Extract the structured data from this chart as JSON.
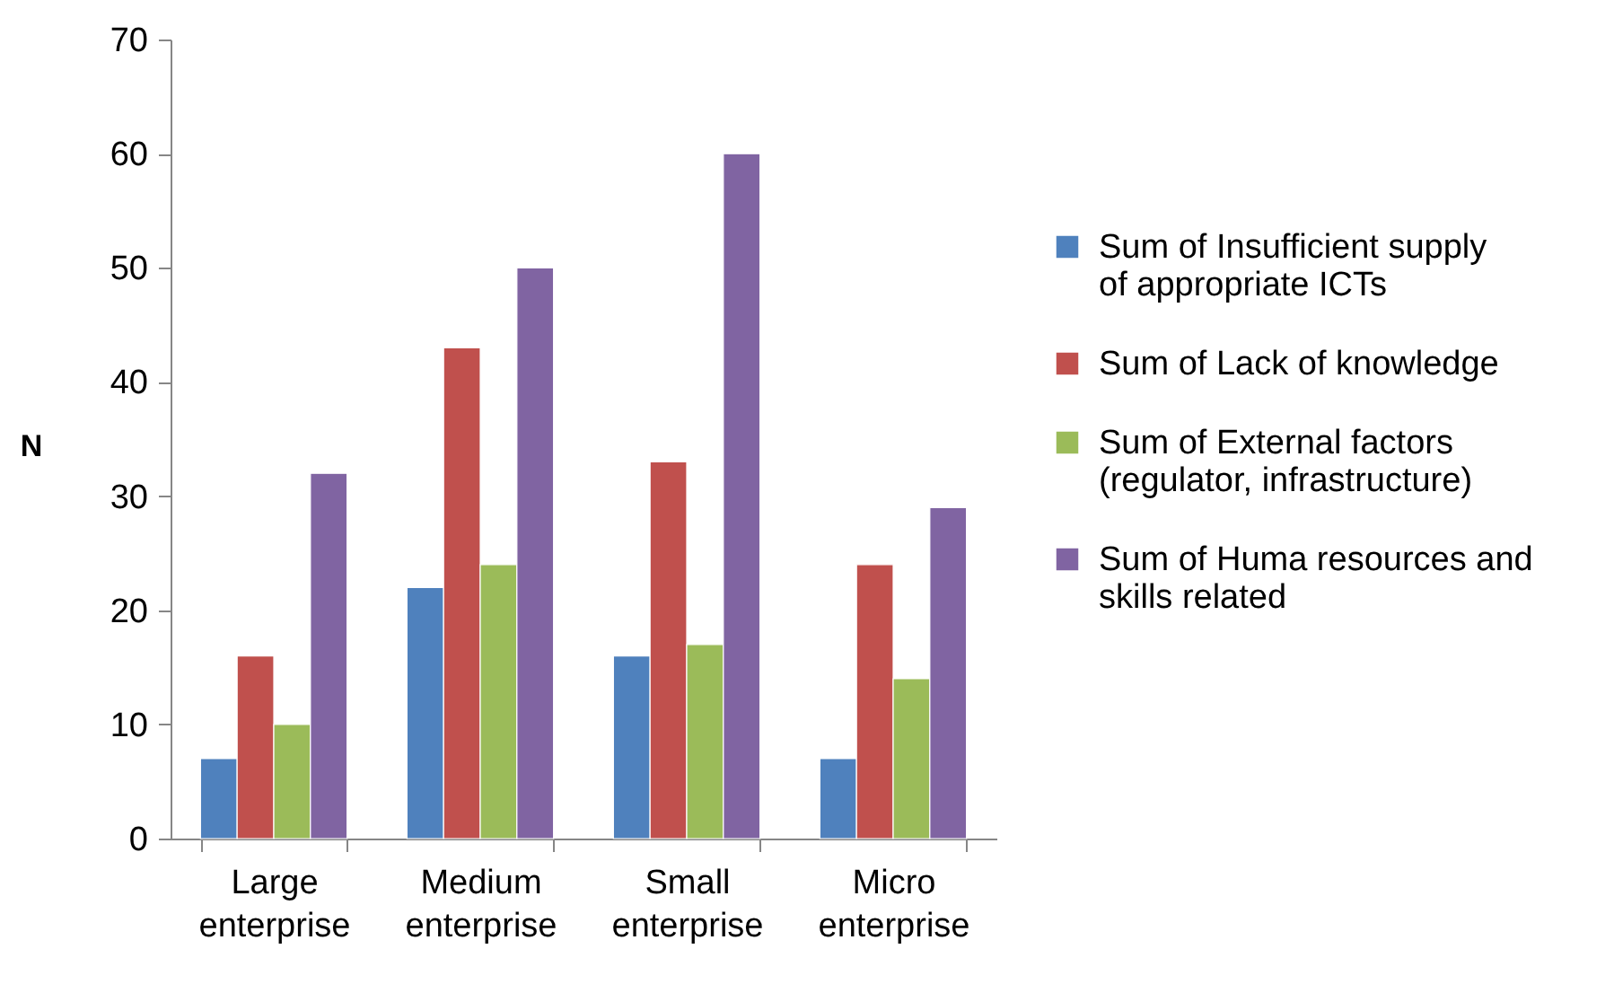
{
  "chart_data": {
    "type": "bar",
    "ylabel": "N",
    "categories": [
      "Large enterprise",
      "Medium enterprise",
      "Small enterprise",
      "Micro enterprise"
    ],
    "series": [
      {
        "name": "Sum of Insufficient supply of appropriate ICTs",
        "color": "#4f81bd",
        "values": [
          7,
          22,
          16,
          7
        ]
      },
      {
        "name": "Sum of Lack of knowledge",
        "color": "#c0504d",
        "values": [
          16,
          43,
          33,
          24
        ]
      },
      {
        "name": "Sum of External factors (regulator, infrastructure)",
        "color": "#9bbb59",
        "values": [
          10,
          24,
          17,
          14
        ]
      },
      {
        "name": "Sum of Huma resources and skills related",
        "color": "#8064a2",
        "values": [
          32,
          50,
          60,
          29
        ]
      }
    ],
    "ylim": [
      0,
      70
    ],
    "yticks": [
      0,
      10,
      20,
      30,
      40,
      50,
      60,
      70
    ],
    "grid": false,
    "legend": "right"
  }
}
